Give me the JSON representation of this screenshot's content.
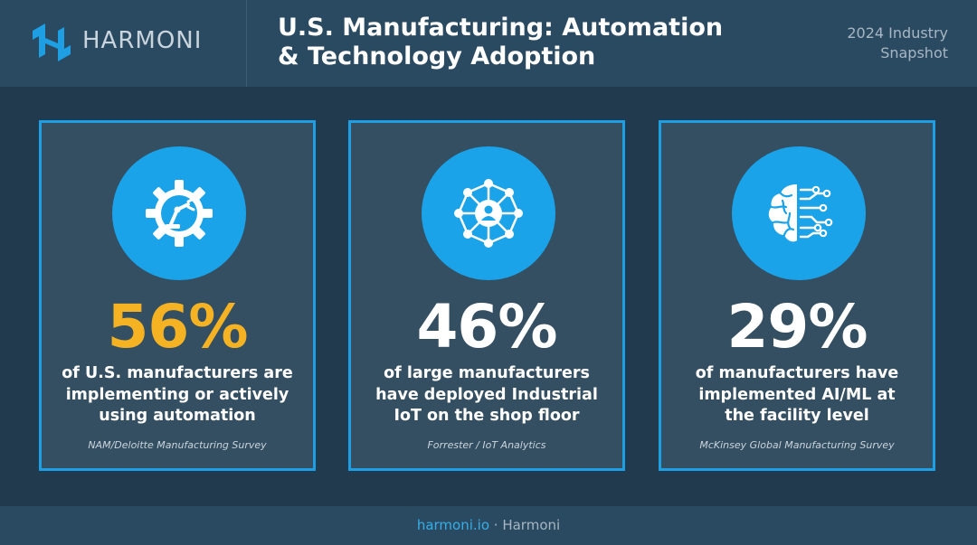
{
  "brand": {
    "name": "HARMONI",
    "accent_color": "#1e9fe4"
  },
  "header": {
    "title_line1": "U.S. Manufacturing: Automation",
    "title_line2": "& Technology Adoption",
    "snapshot_line1": "2024 Industry",
    "snapshot_line2": "Snapshot"
  },
  "cards": [
    {
      "icon": "gear-robot-arm-icon",
      "value": "56%",
      "value_color": "#f5b324",
      "desc_line1": "of U.S. manufacturers are",
      "desc_line2": "implementing or actively",
      "desc_line3": "using automation",
      "source": "NAM/Deloitte Manufacturing Survey"
    },
    {
      "icon": "network-iot-icon",
      "value": "46%",
      "value_color": "#ffffff",
      "desc_line1": "of large manufacturers",
      "desc_line2": "have deployed Industrial",
      "desc_line3": "IoT on the shop floor",
      "source": "Forrester / IoT Analytics"
    },
    {
      "icon": "ai-brain-circuit-icon",
      "value": "29%",
      "value_color": "#ffffff",
      "desc_line1": "of manufacturers have",
      "desc_line2": "implemented AI/ML at",
      "desc_line3": "the facility level",
      "source": "McKinsey Global Manufacturing Survey"
    }
  ],
  "footer": {
    "link": "harmoni.io",
    "separator": " · ",
    "brand": "Harmoni"
  }
}
